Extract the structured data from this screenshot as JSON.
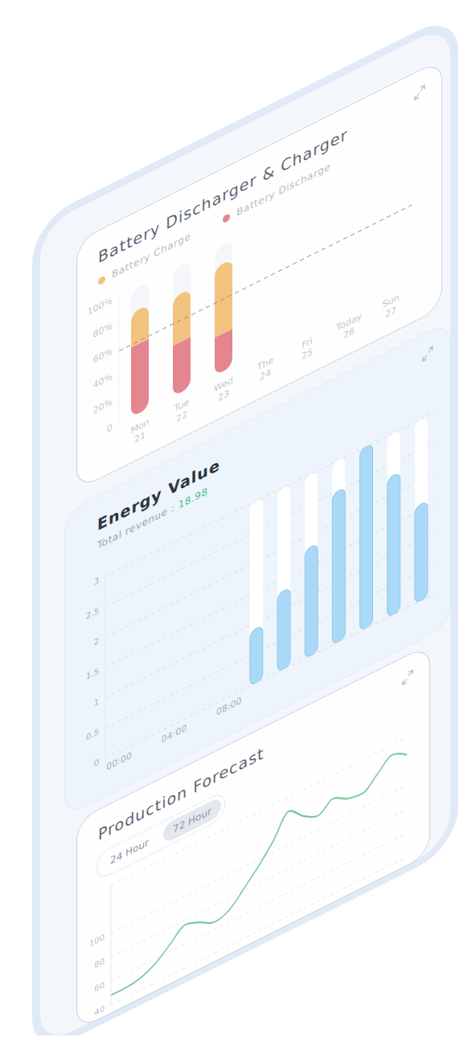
{
  "chart_data": [
    {
      "type": "bar",
      "title": "Battery Discharger & Charger",
      "stacked": true,
      "legend": "top",
      "categories": [
        "Mon 21",
        "Tue 22",
        "Wed 23",
        "The 24",
        "Fri 25",
        "Today 26",
        "Sun 27"
      ],
      "series": [
        {
          "name": "Battery Charge",
          "color": "#f2c27f",
          "values": [
            27,
            38,
            55,
            null,
            null,
            null,
            null
          ]
        },
        {
          "name": "Battery Discharge",
          "color": "#e3868f",
          "values": [
            55,
            40,
            30,
            null,
            null,
            null,
            null
          ]
        }
      ],
      "ylim": [
        0,
        100
      ],
      "yticks": [
        0,
        {
          "value": 20,
          "label": "20%"
        },
        {
          "value": 40,
          "label": "40%"
        },
        {
          "value": 60,
          "label": "60%"
        },
        {
          "value": 80,
          "label": "80%"
        },
        {
          "value": 100,
          "label": "100%"
        }
      ],
      "average_line": 57
    },
    {
      "type": "bar",
      "title": "Energy Value",
      "subtitle_label": "Total revenue :",
      "total_revenue": 18.98,
      "categories": [
        "00:00",
        null,
        "04:00",
        null,
        "08:00",
        null,
        null,
        null,
        null,
        null,
        null,
        null
      ],
      "values": [
        null,
        null,
        null,
        null,
        null,
        0.9,
        1.3,
        1.8,
        2.5,
        3,
        2.3,
        1.6
      ],
      "color": "#a9d9f7",
      "ylim": [
        0,
        3
      ],
      "yticks": [
        0,
        0.5,
        1,
        1.5,
        2,
        2.5,
        3
      ],
      "grid": true
    },
    {
      "type": "line",
      "title": "Production Forecast",
      "buttons": [
        "24 Hour",
        "72 Hour"
      ],
      "selected": "72 Hour",
      "values": [
        48,
        48,
        50,
        56,
        66,
        76,
        72,
        66,
        70,
        82,
        95,
        110,
        128,
        118,
        112,
        120,
        114,
        112,
        122,
        132,
        126
      ],
      "color": "#7cc89a",
      "ylim": [
        40,
        140
      ],
      "yticks": [
        40,
        60,
        80,
        100
      ],
      "grid": true,
      "tick_labels": "y"
    }
  ]
}
